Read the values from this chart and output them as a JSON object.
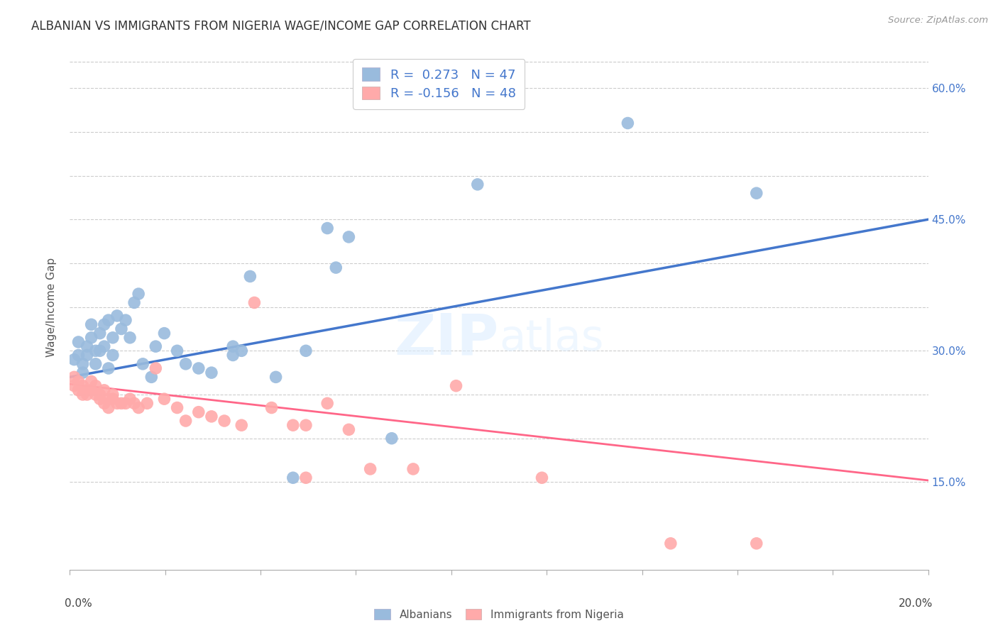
{
  "title": "ALBANIAN VS IMMIGRANTS FROM NIGERIA WAGE/INCOME GAP CORRELATION CHART",
  "source": "Source: ZipAtlas.com",
  "ylabel": "Wage/Income Gap",
  "xmin": 0.0,
  "xmax": 0.2,
  "ymin": 0.05,
  "ymax": 0.65,
  "blue_color": "#99BBDD",
  "pink_color": "#FFAAAA",
  "blue_line_color": "#4477CC",
  "pink_line_color": "#FF6688",
  "R_blue": 0.273,
  "N_blue": 47,
  "R_pink": -0.156,
  "N_pink": 48,
  "legend_label_blue": "Albanians",
  "legend_label_pink": "Immigrants from Nigeria",
  "watermark": "ZIPatlas",
  "ytick_vals": [
    0.15,
    0.2,
    0.25,
    0.3,
    0.35,
    0.4,
    0.45,
    0.5,
    0.55,
    0.6
  ],
  "right_ytick_labels": [
    "15.0%",
    "",
    "",
    "30.0%",
    "",
    "",
    "45.0%",
    "",
    "",
    "60.0%"
  ],
  "blue_x": [
    0.001,
    0.002,
    0.002,
    0.003,
    0.003,
    0.004,
    0.004,
    0.005,
    0.005,
    0.006,
    0.006,
    0.007,
    0.007,
    0.008,
    0.008,
    0.009,
    0.009,
    0.01,
    0.01,
    0.011,
    0.012,
    0.013,
    0.014,
    0.015,
    0.016,
    0.017,
    0.019,
    0.02,
    0.022,
    0.025,
    0.027,
    0.03,
    0.033,
    0.038,
    0.04,
    0.042,
    0.048,
    0.055,
    0.06,
    0.065,
    0.075,
    0.038,
    0.052,
    0.095,
    0.13,
    0.16,
    0.062
  ],
  "blue_y": [
    0.29,
    0.31,
    0.295,
    0.285,
    0.275,
    0.305,
    0.295,
    0.33,
    0.315,
    0.285,
    0.3,
    0.32,
    0.3,
    0.33,
    0.305,
    0.335,
    0.28,
    0.295,
    0.315,
    0.34,
    0.325,
    0.335,
    0.315,
    0.355,
    0.365,
    0.285,
    0.27,
    0.305,
    0.32,
    0.3,
    0.285,
    0.28,
    0.275,
    0.305,
    0.3,
    0.385,
    0.27,
    0.3,
    0.44,
    0.43,
    0.2,
    0.295,
    0.155,
    0.49,
    0.56,
    0.48,
    0.395
  ],
  "pink_x": [
    0.001,
    0.001,
    0.002,
    0.002,
    0.003,
    0.003,
    0.004,
    0.004,
    0.005,
    0.005,
    0.006,
    0.006,
    0.007,
    0.007,
    0.008,
    0.008,
    0.009,
    0.009,
    0.01,
    0.01,
    0.011,
    0.012,
    0.013,
    0.014,
    0.015,
    0.016,
    0.018,
    0.02,
    0.022,
    0.025,
    0.027,
    0.03,
    0.033,
    0.036,
    0.04,
    0.043,
    0.047,
    0.052,
    0.055,
    0.06,
    0.065,
    0.07,
    0.08,
    0.055,
    0.09,
    0.11,
    0.14,
    0.16
  ],
  "pink_y": [
    0.27,
    0.26,
    0.265,
    0.255,
    0.26,
    0.25,
    0.255,
    0.25,
    0.265,
    0.255,
    0.26,
    0.25,
    0.245,
    0.25,
    0.24,
    0.255,
    0.245,
    0.235,
    0.25,
    0.245,
    0.24,
    0.24,
    0.24,
    0.245,
    0.24,
    0.235,
    0.24,
    0.28,
    0.245,
    0.235,
    0.22,
    0.23,
    0.225,
    0.22,
    0.215,
    0.355,
    0.235,
    0.215,
    0.215,
    0.24,
    0.21,
    0.165,
    0.165,
    0.155,
    0.26,
    0.155,
    0.08,
    0.08
  ],
  "blue_trend_y0": 0.27,
  "blue_trend_y1": 0.45,
  "pink_trend_y0": 0.262,
  "pink_trend_y1": 0.152
}
